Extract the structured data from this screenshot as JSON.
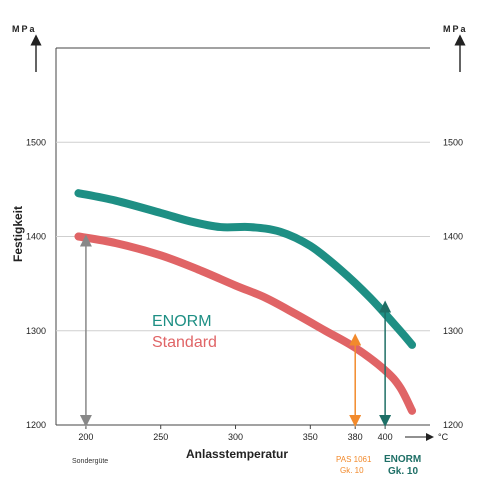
{
  "chart_data": {
    "type": "line",
    "xlabel": "Anlasstemperatur",
    "ylabel": "Festigkeit",
    "y_unit_left": "MPa",
    "y_unit_right": "MPa",
    "x_unit": "°C",
    "xlim": [
      180,
      430
    ],
    "ylim": [
      1200,
      1600
    ],
    "x_ticks": [
      "200",
      "250",
      "300",
      "350",
      "380",
      "400"
    ],
    "x_tick_values": [
      200,
      250,
      300,
      350,
      380,
      400
    ],
    "y_ticks": [
      "1200",
      "1300",
      "1400",
      "1500"
    ],
    "y_tick_values": [
      1200,
      1300,
      1400,
      1500
    ],
    "grid": true,
    "series": [
      {
        "name": "ENORM",
        "color": "#1e8f84",
        "x": [
          195,
          220,
          250,
          270,
          290,
          310,
          330,
          350,
          370,
          390,
          410,
          418
        ],
        "y": [
          1446,
          1438,
          1425,
          1416,
          1410,
          1410,
          1405,
          1390,
          1365,
          1335,
          1300,
          1285
        ]
      },
      {
        "name": "Standard",
        "color": "#e06466",
        "x": [
          195,
          220,
          250,
          275,
          300,
          320,
          340,
          360,
          380,
          400,
          410,
          418
        ],
        "y": [
          1400,
          1393,
          1380,
          1365,
          1348,
          1335,
          1318,
          1300,
          1282,
          1258,
          1240,
          1215
        ]
      }
    ],
    "annotations": {
      "left_arrow_label": "Sondergüte",
      "orange_label_1": "PAS 1061",
      "orange_label_2": "Gk. 10",
      "teal_label_1": "ENORM",
      "teal_label_2": "Gk. 10",
      "arrows": [
        {
          "x": 200,
          "y_top": 1400,
          "color": "#888888",
          "double": true
        },
        {
          "x": 380,
          "y_top": 1295,
          "color": "#f28a2c",
          "double": true
        },
        {
          "x": 400,
          "y_top": 1330,
          "color": "#1e6f66",
          "double": true
        }
      ]
    }
  }
}
